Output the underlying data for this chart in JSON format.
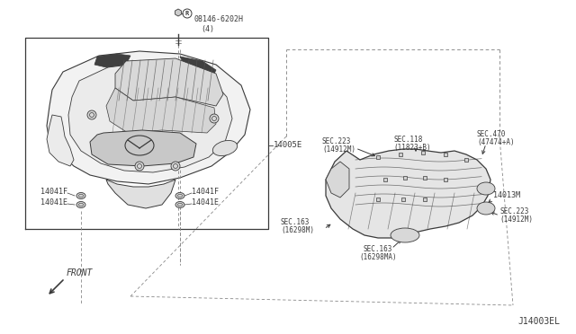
{
  "bg_color": "#ffffff",
  "diagram_id": "J14003EL",
  "parts": {
    "bolt_label": "08146-6202H\n(4)",
    "engine_cover_label": "14005E",
    "manifold_label": "14013M",
    "sec223_top": "SEC.223\n(14912M)",
    "sec118": "SEC.118\n(11823+B)",
    "sec470": "SEC.470\n(47474+A)",
    "sec163_left": "SEC.163\n(16298M)",
    "sec223_right": "SEC.223\n(14912M)",
    "sec163_bottom": "SEC.163\n(16298MA)",
    "front_label": "FRONT"
  },
  "colors": {
    "line": "#3a3a3a",
    "text": "#3a3a3a",
    "dashed": "#888888",
    "bg": "#ffffff",
    "fill_light": "#e8e8e8",
    "fill_mid": "#d0d0d0"
  }
}
